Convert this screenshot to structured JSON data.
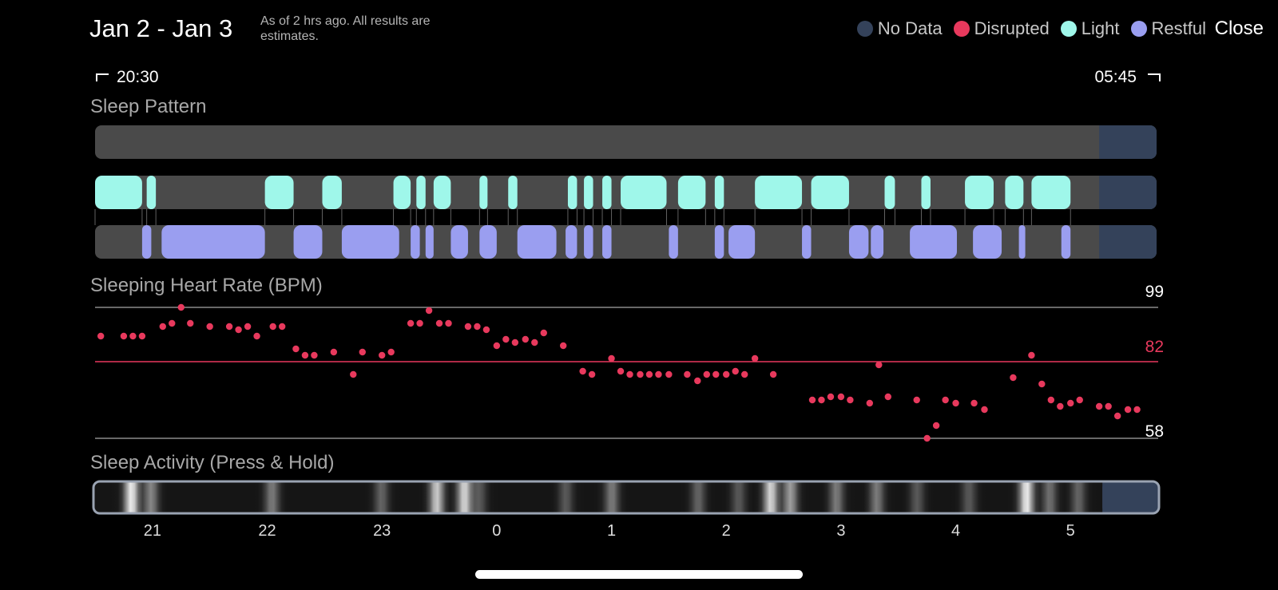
{
  "header": {
    "date_range": "Jan 2 - Jan 3",
    "subtitle": "As of 2 hrs ago. All results are estimates.",
    "close_label": "Close"
  },
  "legend": [
    {
      "label": "No Data",
      "color": "#34425a"
    },
    {
      "label": "Disrupted",
      "color": "#e8395d"
    },
    {
      "label": "Light",
      "color": "#9ff7ea"
    },
    {
      "label": "Restful",
      "color": "#9a9ef0"
    }
  ],
  "time_range": {
    "start": "20:30",
    "end": "05:45"
  },
  "sections": {
    "sleep_pattern": "Sleep Pattern",
    "heart_rate": "Sleeping Heart Rate (BPM)",
    "activity": "Sleep Activity (Press & Hold)"
  },
  "colors": {
    "track": "#4a4a4a",
    "no_data": "#34425a",
    "light": "#9ff7ea",
    "restful": "#9a9ef0",
    "disrupted": "#e8395d"
  },
  "chart_data": {
    "type": "scatter",
    "title": "Sleeping Heart Rate (BPM)",
    "x_unit": "hours since 20:30",
    "y_reference_lines": {
      "max": 99,
      "avg": 82,
      "min": 58
    },
    "ylim": [
      58,
      99
    ],
    "x_tick_labels": [
      "21",
      "22",
      "23",
      "0",
      "1",
      "2",
      "3",
      "4",
      "5"
    ],
    "x_tick_hours": [
      0.5,
      1.5,
      2.5,
      3.5,
      4.5,
      5.5,
      6.5,
      7.5,
      8.5
    ],
    "x_range_hours": [
      0,
      9.25
    ],
    "no_data_start_hour": 8.75,
    "heart_rate": [
      {
        "x": 0.05,
        "y": 90
      },
      {
        "x": 0.25,
        "y": 90
      },
      {
        "x": 0.33,
        "y": 90
      },
      {
        "x": 0.41,
        "y": 90
      },
      {
        "x": 0.59,
        "y": 93
      },
      {
        "x": 0.67,
        "y": 94
      },
      {
        "x": 0.75,
        "y": 99
      },
      {
        "x": 0.83,
        "y": 94
      },
      {
        "x": 1.0,
        "y": 93
      },
      {
        "x": 1.17,
        "y": 93
      },
      {
        "x": 1.25,
        "y": 92
      },
      {
        "x": 1.33,
        "y": 93
      },
      {
        "x": 1.41,
        "y": 90
      },
      {
        "x": 1.55,
        "y": 93
      },
      {
        "x": 1.63,
        "y": 93
      },
      {
        "x": 1.75,
        "y": 86
      },
      {
        "x": 1.83,
        "y": 84
      },
      {
        "x": 1.91,
        "y": 84
      },
      {
        "x": 2.08,
        "y": 85
      },
      {
        "x": 2.25,
        "y": 78
      },
      {
        "x": 2.33,
        "y": 85
      },
      {
        "x": 2.5,
        "y": 84
      },
      {
        "x": 2.58,
        "y": 85
      },
      {
        "x": 2.75,
        "y": 94
      },
      {
        "x": 2.83,
        "y": 94
      },
      {
        "x": 2.91,
        "y": 98
      },
      {
        "x": 3.0,
        "y": 94
      },
      {
        "x": 3.08,
        "y": 94
      },
      {
        "x": 3.25,
        "y": 93
      },
      {
        "x": 3.33,
        "y": 93
      },
      {
        "x": 3.41,
        "y": 92
      },
      {
        "x": 3.5,
        "y": 87
      },
      {
        "x": 3.58,
        "y": 89
      },
      {
        "x": 3.66,
        "y": 88
      },
      {
        "x": 3.75,
        "y": 89
      },
      {
        "x": 3.83,
        "y": 88
      },
      {
        "x": 3.91,
        "y": 91
      },
      {
        "x": 4.08,
        "y": 87
      },
      {
        "x": 4.25,
        "y": 79
      },
      {
        "x": 4.33,
        "y": 78
      },
      {
        "x": 4.5,
        "y": 83
      },
      {
        "x": 4.58,
        "y": 79
      },
      {
        "x": 4.66,
        "y": 78
      },
      {
        "x": 4.75,
        "y": 78
      },
      {
        "x": 4.83,
        "y": 78
      },
      {
        "x": 4.91,
        "y": 78
      },
      {
        "x": 5.0,
        "y": 78
      },
      {
        "x": 5.16,
        "y": 78
      },
      {
        "x": 5.25,
        "y": 76
      },
      {
        "x": 5.33,
        "y": 78
      },
      {
        "x": 5.41,
        "y": 78
      },
      {
        "x": 5.5,
        "y": 78
      },
      {
        "x": 5.58,
        "y": 79
      },
      {
        "x": 5.66,
        "y": 78
      },
      {
        "x": 5.75,
        "y": 83
      },
      {
        "x": 5.91,
        "y": 78
      },
      {
        "x": 6.25,
        "y": 70
      },
      {
        "x": 6.33,
        "y": 70
      },
      {
        "x": 6.41,
        "y": 71
      },
      {
        "x": 6.5,
        "y": 71
      },
      {
        "x": 6.58,
        "y": 70
      },
      {
        "x": 6.75,
        "y": 69
      },
      {
        "x": 6.83,
        "y": 81
      },
      {
        "x": 6.91,
        "y": 71
      },
      {
        "x": 7.16,
        "y": 70
      },
      {
        "x": 7.25,
        "y": 58
      },
      {
        "x": 7.33,
        "y": 62
      },
      {
        "x": 7.41,
        "y": 70
      },
      {
        "x": 7.5,
        "y": 69
      },
      {
        "x": 7.66,
        "y": 69
      },
      {
        "x": 7.75,
        "y": 67
      },
      {
        "x": 8.0,
        "y": 77
      },
      {
        "x": 8.16,
        "y": 84
      },
      {
        "x": 8.25,
        "y": 75
      },
      {
        "x": 8.33,
        "y": 70
      },
      {
        "x": 8.41,
        "y": 68
      },
      {
        "x": 8.5,
        "y": 69
      },
      {
        "x": 8.58,
        "y": 70
      },
      {
        "x": 8.75,
        "y": 68
      },
      {
        "x": 8.83,
        "y": 68
      },
      {
        "x": 8.91,
        "y": 65
      },
      {
        "x": 9.0,
        "y": 67
      },
      {
        "x": 9.08,
        "y": 67
      }
    ]
  },
  "sleep_pattern": {
    "disrupted_segments": [],
    "light_segments": [
      [
        0.0,
        0.41
      ],
      [
        0.45,
        0.53
      ],
      [
        1.48,
        1.73
      ],
      [
        1.98,
        2.15
      ],
      [
        2.6,
        2.75
      ],
      [
        2.8,
        2.88
      ],
      [
        2.95,
        3.1
      ],
      [
        3.35,
        3.42
      ],
      [
        3.6,
        3.68
      ],
      [
        4.12,
        4.2
      ],
      [
        4.26,
        4.34
      ],
      [
        4.42,
        4.5
      ],
      [
        4.58,
        4.98
      ],
      [
        5.08,
        5.32
      ],
      [
        5.4,
        5.48
      ],
      [
        5.75,
        6.16
      ],
      [
        6.24,
        6.57
      ],
      [
        6.88,
        6.97
      ],
      [
        7.2,
        7.28
      ],
      [
        7.58,
        7.83
      ],
      [
        7.93,
        8.09
      ],
      [
        8.16,
        8.5
      ]
    ],
    "restful_segments": [
      [
        0.41,
        0.49
      ],
      [
        0.58,
        1.48
      ],
      [
        1.73,
        1.98
      ],
      [
        2.15,
        2.65
      ],
      [
        2.75,
        2.83
      ],
      [
        2.88,
        2.95
      ],
      [
        3.1,
        3.25
      ],
      [
        3.35,
        3.5
      ],
      [
        3.68,
        4.02
      ],
      [
        4.1,
        4.2
      ],
      [
        4.26,
        4.34
      ],
      [
        4.42,
        4.5
      ],
      [
        5.0,
        5.08
      ],
      [
        5.4,
        5.48
      ],
      [
        5.52,
        5.75
      ],
      [
        6.16,
        6.24
      ],
      [
        6.57,
        6.74
      ],
      [
        6.76,
        6.87
      ],
      [
        7.1,
        7.51
      ],
      [
        7.65,
        7.9
      ],
      [
        8.05,
        8.09
      ],
      [
        8.42,
        8.5
      ]
    ],
    "activity_peaks": [
      {
        "x": 0.33,
        "level": 0.95
      },
      {
        "x": 0.5,
        "level": 0.5
      },
      {
        "x": 1.55,
        "level": 0.45
      },
      {
        "x": 2.5,
        "level": 0.35
      },
      {
        "x": 2.98,
        "level": 0.8
      },
      {
        "x": 3.22,
        "level": 0.85
      },
      {
        "x": 3.35,
        "level": 0.3
      },
      {
        "x": 4.1,
        "level": 0.3
      },
      {
        "x": 4.5,
        "level": 0.45
      },
      {
        "x": 5.25,
        "level": 0.35
      },
      {
        "x": 5.6,
        "level": 0.3
      },
      {
        "x": 5.88,
        "level": 0.85
      },
      {
        "x": 6.05,
        "level": 0.6
      },
      {
        "x": 6.45,
        "level": 0.45
      },
      {
        "x": 6.8,
        "level": 0.45
      },
      {
        "x": 7.15,
        "level": 0.3
      },
      {
        "x": 7.6,
        "level": 0.3
      },
      {
        "x": 8.1,
        "level": 0.95
      },
      {
        "x": 8.3,
        "level": 0.4
      },
      {
        "x": 8.55,
        "level": 0.35
      }
    ]
  }
}
